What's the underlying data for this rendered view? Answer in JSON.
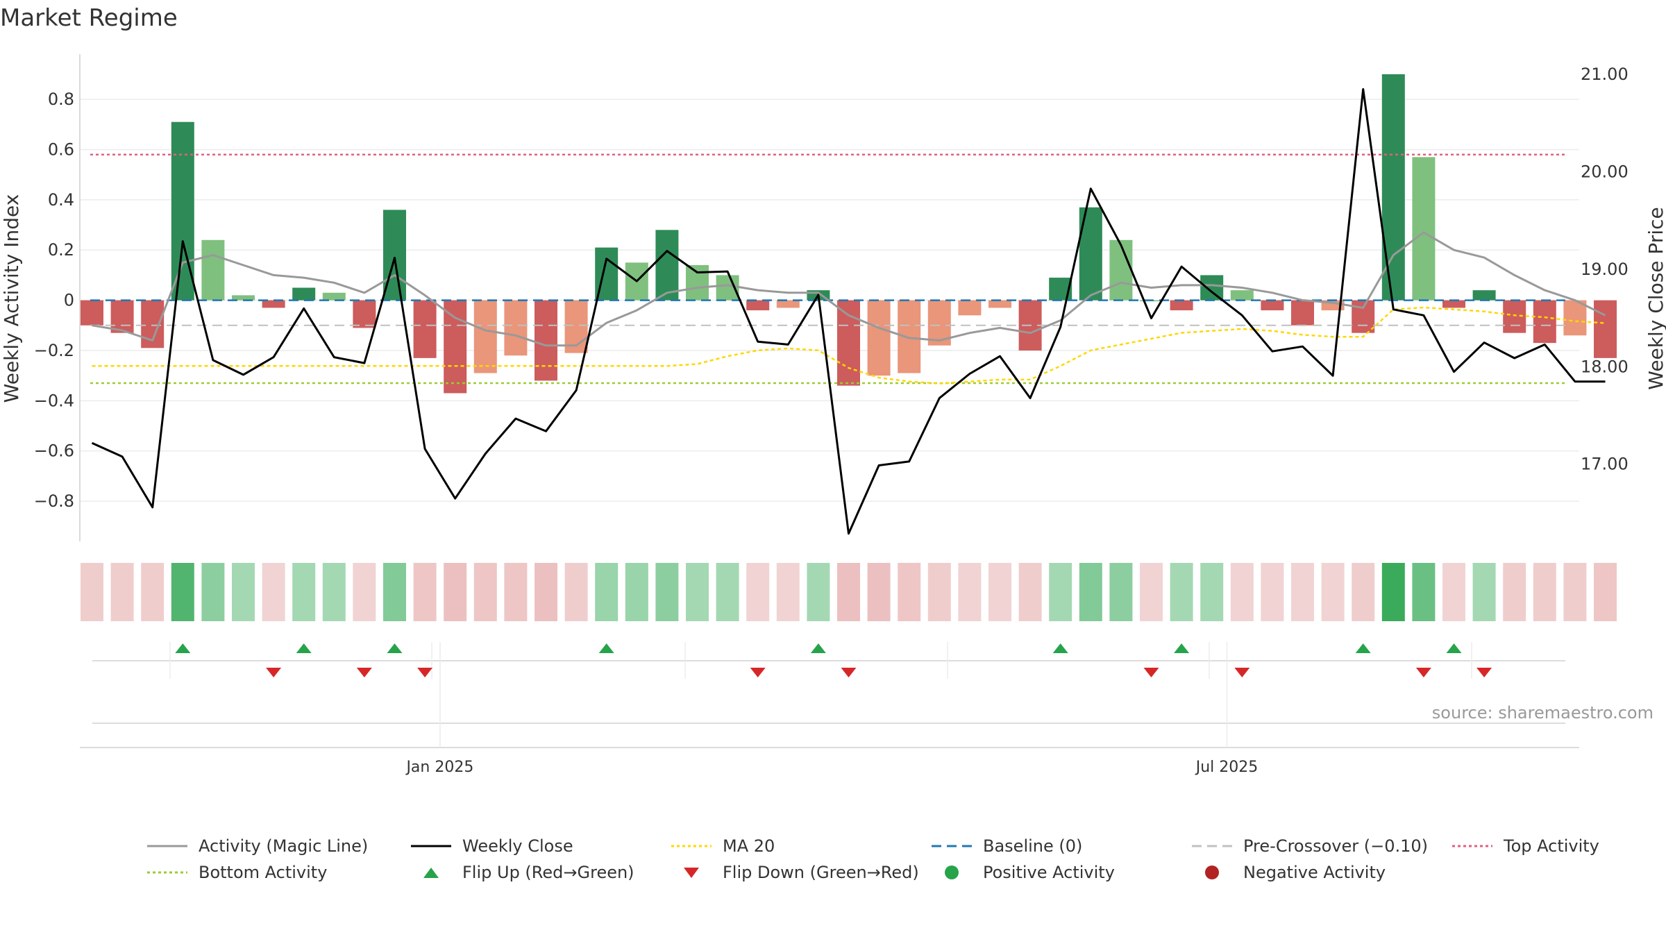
{
  "title": "Market Regime",
  "source": "source: sharemaestro.com",
  "colors": {
    "green_dark": "#2e8b57",
    "green_light": "#7fc07f",
    "red_dark": "#cd5c5c",
    "red_light": "#e9967a",
    "magic_line": "#999999",
    "weekly_close": "#000000",
    "ma20": "#ffd700",
    "baseline": "#1f77b4",
    "pre_crossover": "#c0c0c0",
    "top_activity": "#e0607e",
    "bottom_activity": "#9acd32",
    "flip_up": "#27a34b",
    "flip_down": "#d62728",
    "positive": "#27a34b",
    "negative": "#b22222"
  },
  "chart_data": {
    "type": "bar",
    "ylabel": "Weekly Activity Index",
    "y2label": "Weekly Close Price",
    "ylim": [
      -0.96,
      0.98
    ],
    "y2lim": [
      16.2,
      21.2
    ],
    "yticks": [
      0.8,
      0.6,
      0.4,
      0.2,
      0,
      -0.2,
      -0.4,
      -0.6,
      -0.8
    ],
    "ytick_labels": [
      "0.8",
      "0.6",
      "0.4",
      "0.2",
      "0",
      "−0.2",
      "−0.4",
      "−0.6",
      "−0.8"
    ],
    "y2ticks": [
      21,
      20,
      19,
      18,
      17
    ],
    "y2tick_labels": [
      "21.00",
      "20.00",
      "19.00",
      "18.00",
      "17.00"
    ],
    "xtick_labels": [
      {
        "label": "Jan 2025",
        "week": 11.5
      },
      {
        "label": "Jul 2025",
        "week": 37.5
      }
    ],
    "top_activity": 0.58,
    "bottom_activity": -0.33,
    "pre_crossover": -0.1,
    "baseline": 0,
    "activity": [
      -0.1,
      -0.13,
      -0.19,
      0.71,
      0.24,
      0.02,
      -0.03,
      0.05,
      0.03,
      -0.11,
      0.36,
      -0.23,
      -0.37,
      -0.29,
      -0.22,
      -0.32,
      -0.21,
      0.21,
      0.15,
      0.28,
      0.14,
      0.1,
      -0.04,
      -0.03,
      0.04,
      -0.34,
      -0.3,
      -0.29,
      -0.18,
      -0.06,
      -0.03,
      -0.2,
      0.09,
      0.37,
      0.24,
      0.0,
      -0.04,
      0.1,
      0.04,
      -0.04,
      -0.1,
      -0.04,
      -0.13,
      0.9,
      0.57,
      -0.03,
      0.04,
      -0.13,
      -0.17,
      -0.14,
      -0.23
    ],
    "bar_shade": [
      "dark",
      "dark",
      "dark",
      "dark",
      "light",
      "light",
      "dark",
      "dark",
      "light",
      "dark",
      "dark",
      "dark",
      "dark",
      "light",
      "light",
      "dark",
      "light",
      "dark",
      "light",
      "dark",
      "light",
      "light",
      "dark",
      "light",
      "dark",
      "dark",
      "light",
      "light",
      "light",
      "light",
      "light",
      "dark",
      "dark",
      "dark",
      "light",
      "light",
      "dark",
      "dark",
      "light",
      "dark",
      "dark",
      "light",
      "dark",
      "dark",
      "light",
      "dark",
      "dark",
      "dark",
      "dark",
      "light",
      "dark"
    ],
    "magic_line": [
      -0.1,
      -0.12,
      -0.16,
      0.15,
      0.18,
      0.14,
      0.1,
      0.09,
      0.07,
      0.03,
      0.1,
      0.02,
      -0.07,
      -0.12,
      -0.14,
      -0.18,
      -0.18,
      -0.09,
      -0.04,
      0.03,
      0.05,
      0.06,
      0.04,
      0.03,
      0.03,
      -0.06,
      -0.11,
      -0.15,
      -0.16,
      -0.13,
      -0.11,
      -0.13,
      -0.08,
      0.02,
      0.07,
      0.05,
      0.06,
      0.06,
      0.05,
      0.03,
      0.0,
      -0.01,
      -0.03,
      0.18,
      0.27,
      0.2,
      0.17,
      0.1,
      0.04,
      0.0,
      -0.06
    ],
    "ma20": [
      -0.2,
      -0.2,
      -0.2,
      -0.2,
      -0.2,
      -0.2,
      -0.2,
      -0.2,
      -0.2,
      -0.2,
      -0.2,
      -0.2,
      -0.2,
      -0.2,
      -0.2,
      -0.2,
      -0.2,
      -0.2,
      -0.2,
      -0.2,
      -0.2,
      -0.2,
      -0.2,
      -0.2,
      -0.2,
      -0.2,
      -0.2,
      -0.2,
      -0.2,
      -0.2,
      -0.2,
      -0.2,
      -0.2,
      -0.2,
      -0.2,
      -0.2,
      -0.2,
      -0.2,
      -0.2,
      -0.2,
      -0.2,
      -0.2,
      -0.2,
      -0.2,
      -0.2,
      -0.2,
      -0.2,
      -0.2,
      -0.2,
      -0.2,
      -0.2
    ],
    "ma20_price_scale": [
      18.0,
      18.0,
      18.0,
      18.0,
      18.0,
      18.0,
      18.0,
      18.0,
      18.0,
      18.0,
      18.0,
      18.0,
      18.0,
      18.0,
      18.0,
      18.0,
      18.0,
      18.0,
      18.0,
      18.0,
      18.02,
      18.1,
      18.16,
      18.18,
      18.16,
      17.98,
      17.88,
      17.84,
      17.82,
      17.84,
      17.86,
      17.86,
      18.0,
      18.16,
      18.22,
      18.28,
      18.34,
      18.36,
      18.38,
      18.36,
      18.32,
      18.3,
      18.3,
      18.58,
      18.6,
      18.58,
      18.56,
      18.52,
      18.5,
      18.46,
      18.44
    ],
    "weekly_close": [
      17.21,
      17.07,
      16.55,
      19.28,
      18.06,
      17.91,
      18.09,
      18.59,
      18.09,
      18.03,
      19.11,
      17.15,
      16.64,
      17.1,
      17.46,
      17.33,
      17.75,
      19.1,
      18.87,
      19.18,
      18.96,
      18.97,
      18.25,
      18.22,
      18.73,
      16.28,
      16.98,
      17.02,
      17.67,
      17.92,
      18.1,
      17.67,
      18.4,
      19.82,
      19.24,
      18.49,
      19.02,
      18.76,
      18.52,
      18.15,
      18.2,
      17.9,
      20.84,
      18.58,
      18.52,
      17.94,
      18.24,
      18.08,
      18.22,
      17.84,
      17.84
    ],
    "heat_strip": [
      -0.3,
      -0.3,
      -0.3,
      1.0,
      0.5,
      0.3,
      -0.2,
      0.3,
      0.3,
      -0.2,
      0.6,
      -0.4,
      -0.5,
      -0.4,
      -0.4,
      -0.5,
      -0.3,
      0.4,
      0.4,
      0.5,
      0.3,
      0.3,
      -0.2,
      -0.2,
      0.3,
      -0.5,
      -0.5,
      -0.4,
      -0.3,
      -0.2,
      -0.2,
      -0.3,
      0.3,
      0.6,
      0.5,
      -0.2,
      0.3,
      0.3,
      -0.2,
      -0.2,
      -0.2,
      -0.2,
      -0.3,
      1.2,
      0.8,
      -0.2,
      0.3,
      -0.3,
      -0.3,
      -0.3,
      -0.4
    ],
    "flip_up_weeks": [
      3,
      7,
      10,
      17,
      24,
      32,
      36,
      42,
      45
    ],
    "flip_down_weeks": [
      6,
      9,
      11,
      22,
      25,
      35,
      38,
      44,
      46
    ],
    "legend": [
      {
        "label": "Activity (Magic Line)",
        "kind": "line",
        "color": "#999999",
        "dash": ""
      },
      {
        "label": "Weekly Close",
        "kind": "line",
        "color": "#000000",
        "dash": ""
      },
      {
        "label": "MA 20",
        "kind": "line",
        "color": "#ffd700",
        "dash": "4 4"
      },
      {
        "label": "Baseline (0)",
        "kind": "line",
        "color": "#1f77b4",
        "dash": "14 8"
      },
      {
        "label": "Pre-Crossover (−0.10)",
        "kind": "line",
        "color": "#c0c0c0",
        "dash": "14 8"
      },
      {
        "label": "Top Activity",
        "kind": "line",
        "color": "#e0607e",
        "dash": "4 4"
      },
      {
        "label": "Bottom Activity",
        "kind": "line",
        "color": "#9acd32",
        "dash": "4 4"
      },
      {
        "label": "Flip Up (Red→Green)",
        "kind": "triangle-up",
        "color": "#27a34b",
        "dash": ""
      },
      {
        "label": "Flip Down (Green→Red)",
        "kind": "triangle-down",
        "color": "#d62728",
        "dash": ""
      },
      {
        "label": "Positive Activity",
        "kind": "dot",
        "color": "#27a34b",
        "dash": ""
      },
      {
        "label": "Negative Activity",
        "kind": "dot",
        "color": "#b22222",
        "dash": ""
      }
    ]
  }
}
